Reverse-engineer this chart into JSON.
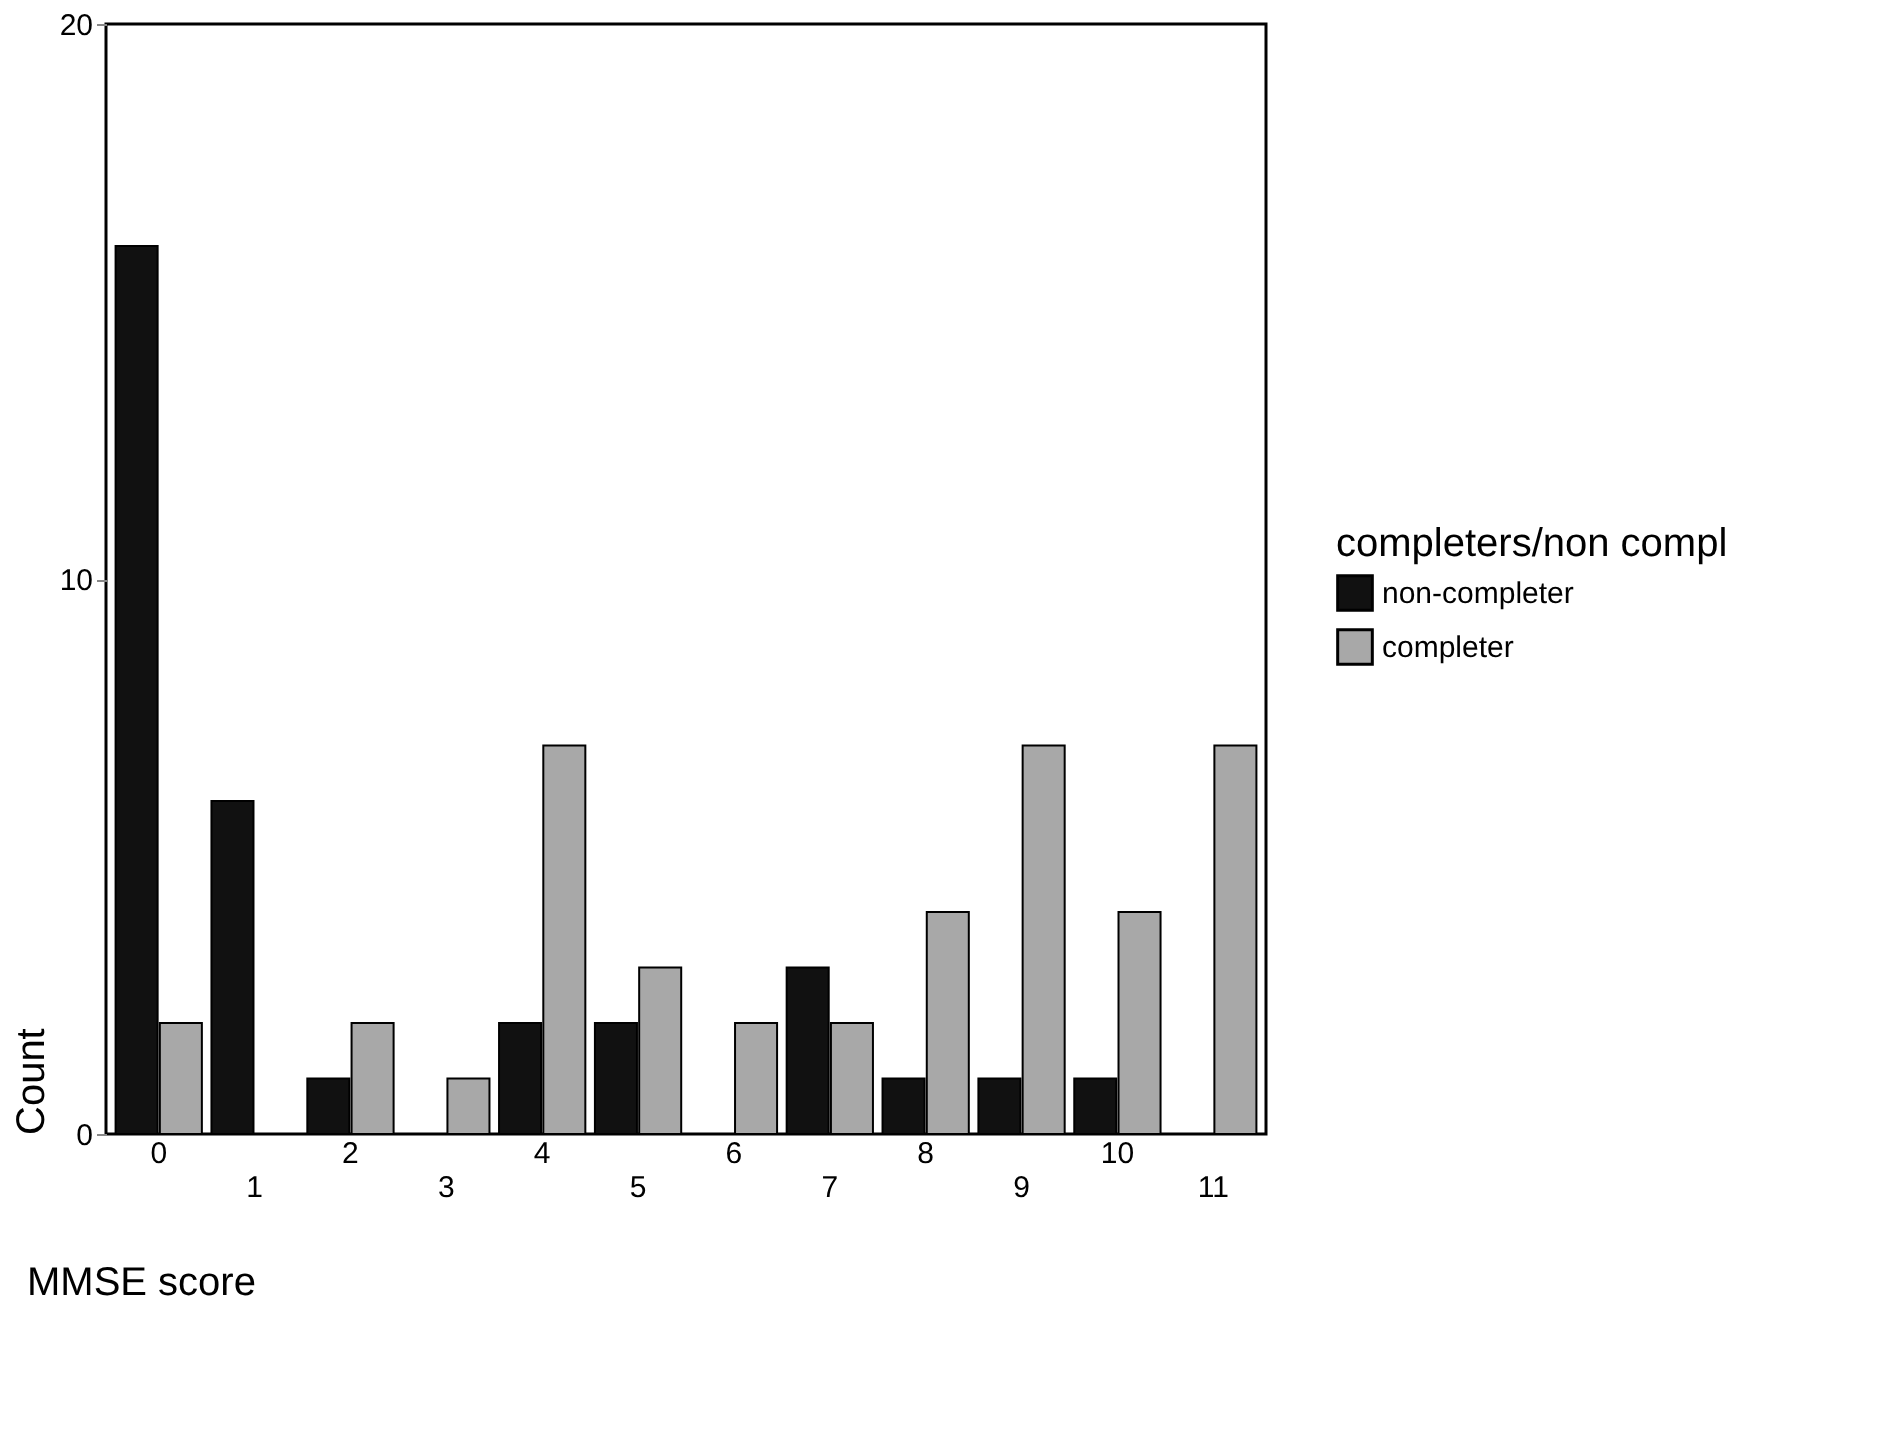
{
  "chart_data": {
    "type": "bar",
    "xlabel": "MMSE score",
    "ylabel": "Count",
    "legend_title": "completers/non compl",
    "categories": [
      "0",
      "1",
      "2",
      "3",
      "4",
      "5",
      "6",
      "7",
      "8",
      "9",
      "10",
      "11"
    ],
    "series": [
      {
        "name": "non-completer",
        "color": "#111111",
        "values": [
          16,
          6,
          1,
          0,
          2,
          2,
          0,
          3,
          1,
          1,
          1,
          0
        ]
      },
      {
        "name": "completer",
        "color": "#a8a8a8",
        "values": [
          2,
          0,
          2,
          1,
          7,
          3,
          2,
          2,
          4,
          7,
          4,
          7
        ]
      }
    ],
    "ylim": [
      0,
      20
    ],
    "yticks": [
      0,
      10,
      20
    ],
    "grid": false,
    "legend": "right"
  }
}
